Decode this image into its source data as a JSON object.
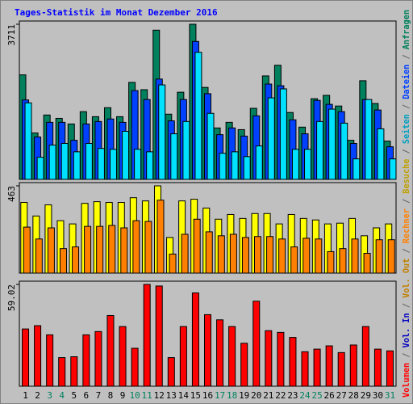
{
  "title": "Tages-Statistik im Monat Dezember 2016",
  "legend_separator": " / ",
  "categories": [
    "1",
    "2",
    "3",
    "4",
    "5",
    "6",
    "7",
    "8",
    "9",
    "10",
    "11",
    "12",
    "13",
    "14",
    "15",
    "16",
    "17",
    "18",
    "19",
    "20",
    "21",
    "22",
    "23",
    "24",
    "25",
    "26",
    "27",
    "28",
    "29",
    "30",
    "31"
  ],
  "category_colors": [
    "#000000",
    "#000000",
    "#00805c",
    "#00805c",
    "#000000",
    "#000000",
    "#000000",
    "#000000",
    "#000000",
    "#00805c",
    "#00805c",
    "#000000",
    "#000000",
    "#000000",
    "#000000",
    "#000000",
    "#00805c",
    "#00805c",
    "#000000",
    "#000000",
    "#000000",
    "#000000",
    "#000000",
    "#00805c",
    "#00805c",
    "#000000",
    "#000000",
    "#000000",
    "#000000",
    "#000000",
    "#00805c"
  ],
  "chart_data": [
    {
      "type": "bar",
      "ylim": [
        0,
        3711
      ],
      "yticks": [
        3711
      ],
      "series": [
        {
          "name": "Anfragen",
          "color": "#00805c",
          "values": [
            2500,
            1110,
            1540,
            1460,
            1325,
            1620,
            1500,
            1715,
            1500,
            2320,
            2145,
            3570,
            1560,
            2085,
            3711,
            2200,
            1230,
            1365,
            1190,
            1700,
            2475,
            2730,
            1600,
            1250,
            1930,
            2010,
            1755,
            935,
            2360,
            1815,
            915
          ]
        },
        {
          "name": "Dateien",
          "color": "#0040ff",
          "values": [
            1900,
            1015,
            1365,
            1365,
            935,
            1325,
            1385,
            1445,
            1365,
            2125,
            1910,
            2400,
            1400,
            1910,
            3300,
            2050,
            1070,
            1230,
            1035,
            1520,
            2280,
            2240,
            1425,
            1090,
            1890,
            1795,
            1620,
            860,
            1910,
            1660,
            780
          ]
        },
        {
          "name": "Seiten",
          "color": "#00e0ff",
          "values": [
            1830,
            530,
            820,
            860,
            660,
            860,
            740,
            720,
            1150,
            720,
            660,
            2260,
            1090,
            1385,
            3040,
            1580,
            625,
            660,
            545,
            800,
            1950,
            2165,
            720,
            720,
            1385,
            1680,
            1345,
            490,
            1910,
            1210,
            490
          ]
        }
      ]
    },
    {
      "type": "bar",
      "ylim": [
        0,
        463
      ],
      "yticks": [
        463
      ],
      "series": [
        {
          "name": "Besuche",
          "color": "#ffff00",
          "values": [
            375,
            303,
            362,
            278,
            261,
            370,
            379,
            375,
            375,
            400,
            383,
            463,
            189,
            383,
            392,
            345,
            286,
            311,
            290,
            316,
            316,
            261,
            311,
            290,
            282,
            261,
            265,
            290,
            198,
            240,
            261
          ]
        },
        {
          "name": "Rechner",
          "color": "#ff8000",
          "values": [
            244,
            181,
            240,
            130,
            139,
            248,
            248,
            253,
            240,
            278,
            274,
            387,
            101,
            206,
            286,
            219,
            198,
            206,
            189,
            194,
            194,
            181,
            139,
            185,
            181,
            114,
            130,
            181,
            105,
            177,
            177
          ]
        }
      ]
    },
    {
      "type": "bar",
      "ylim": [
        0,
        59.02
      ],
      "yticks": [
        59.02
      ],
      "series": [
        {
          "name": "Volumen",
          "color": "#ff0000",
          "values": [
            33.2,
            35.1,
            29.8,
            16.6,
            17.1,
            29.8,
            31.7,
            41.0,
            34.6,
            22.0,
            59.02,
            58.1,
            16.6,
            34.6,
            54.1,
            41.5,
            38.5,
            34.6,
            24.9,
            49.3,
            32.2,
            31.2,
            28.3,
            20.0,
            21.5,
            23.4,
            19.5,
            23.9,
            34.6,
            21.5,
            20.5
          ]
        }
      ],
      "legend_extra": [
        {
          "name": "Vol. In",
          "color": "#0000c0"
        },
        {
          "name": "Vol. Out",
          "color": "#c08000"
        }
      ]
    }
  ]
}
